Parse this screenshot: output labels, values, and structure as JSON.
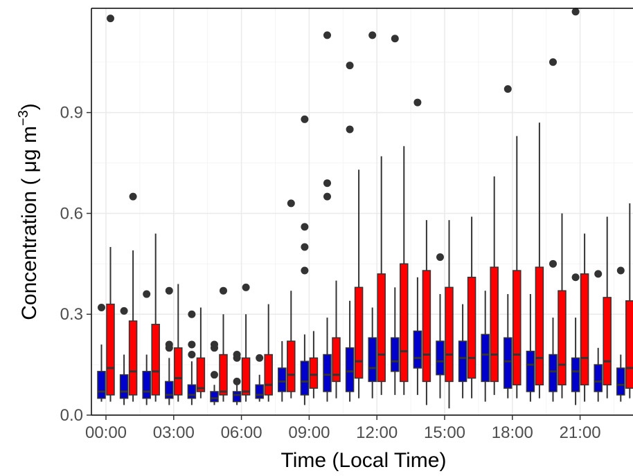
{
  "chart_data": {
    "type": "boxplot",
    "xlabel": "Time (Local Time)",
    "ylabel_main": "Concentration ( μg m",
    "ylabel_sup": "−3",
    "ylabel_close": ")",
    "ylim": [
      0,
      1.21
    ],
    "y_ticks": [
      {
        "value": 0.0,
        "label": "0.0"
      },
      {
        "value": 0.3,
        "label": "0.3"
      },
      {
        "value": 0.6,
        "label": "0.6"
      },
      {
        "value": 0.9,
        "label": "0.9"
      }
    ],
    "x_ticks": [
      {
        "hour": 0,
        "label": "00:00"
      },
      {
        "hour": 3,
        "label": "03:00"
      },
      {
        "hour": 6,
        "label": "06:00"
      },
      {
        "hour": 9,
        "label": "09:00"
      },
      {
        "hour": 12,
        "label": "12:00"
      },
      {
        "hour": 15,
        "label": "15:00"
      },
      {
        "hour": 18,
        "label": "18:00"
      },
      {
        "hour": 21,
        "label": "21:00"
      }
    ],
    "grid": true,
    "legend": "none",
    "colors": {
      "series_a": "#0000cc",
      "series_b": "#ff0000",
      "outline": "#333333",
      "outlier": "#333333"
    },
    "series": [
      {
        "color": "#0000cc",
        "boxes": [
          {
            "hour": 0,
            "whisker_low": 0.04,
            "q1": 0.05,
            "median": 0.07,
            "q3": 0.13,
            "whisker_high": 0.21,
            "outliers": [
              0.32
            ]
          },
          {
            "hour": 1,
            "whisker_low": 0.03,
            "q1": 0.05,
            "median": 0.07,
            "q3": 0.12,
            "whisker_high": 0.18,
            "outliers": [
              0.31
            ]
          },
          {
            "hour": 2,
            "whisker_low": 0.03,
            "q1": 0.05,
            "median": 0.07,
            "q3": 0.13,
            "whisker_high": 0.18,
            "outliers": [
              0.36
            ]
          },
          {
            "hour": 3,
            "whisker_low": 0.03,
            "q1": 0.05,
            "median": 0.06,
            "q3": 0.1,
            "whisker_high": 0.17,
            "outliers": [
              0.37,
              0.21,
              0.2
            ]
          },
          {
            "hour": 4,
            "whisker_low": 0.03,
            "q1": 0.05,
            "median": 0.06,
            "q3": 0.09,
            "whisker_high": 0.16,
            "outliers": [
              0.3,
              0.21,
              0.18
            ]
          },
          {
            "hour": 5,
            "whisker_low": 0.03,
            "q1": 0.04,
            "median": 0.05,
            "q3": 0.07,
            "whisker_high": 0.09,
            "outliers": [
              0.21,
              0.2,
              0.12
            ]
          },
          {
            "hour": 6,
            "whisker_low": 0.03,
            "q1": 0.04,
            "median": 0.06,
            "q3": 0.07,
            "whisker_high": 0.09,
            "outliers": [
              0.18,
              0.17,
              0.1
            ]
          },
          {
            "hour": 7,
            "whisker_low": 0.04,
            "q1": 0.05,
            "median": 0.06,
            "q3": 0.09,
            "whisker_high": 0.12,
            "outliers": [
              0.17
            ]
          },
          {
            "hour": 8,
            "whisker_low": 0.04,
            "q1": 0.07,
            "median": 0.1,
            "q3": 0.14,
            "whisker_high": 0.22,
            "outliers": []
          },
          {
            "hour": 9,
            "whisker_low": 0.03,
            "q1": 0.06,
            "median": 0.1,
            "q3": 0.16,
            "whisker_high": 0.24,
            "outliers": [
              0.88,
              0.56,
              0.5,
              0.43
            ]
          },
          {
            "hour": 10,
            "whisker_low": 0.04,
            "q1": 0.07,
            "median": 0.12,
            "q3": 0.18,
            "whisker_high": 0.29,
            "outliers": [
              1.13,
              0.69,
              0.65
            ]
          },
          {
            "hour": 11,
            "whisker_low": 0.04,
            "q1": 0.07,
            "median": 0.13,
            "q3": 0.2,
            "whisker_high": 0.34,
            "outliers": [
              1.04,
              0.85
            ]
          },
          {
            "hour": 12,
            "whisker_low": 0.05,
            "q1": 0.1,
            "median": 0.14,
            "q3": 0.23,
            "whisker_high": 0.32,
            "outliers": [
              1.13
            ]
          },
          {
            "hour": 13,
            "whisker_low": 0.06,
            "q1": 0.13,
            "median": 0.16,
            "q3": 0.23,
            "whisker_high": 0.38,
            "outliers": [
              1.12
            ]
          },
          {
            "hour": 14,
            "whisker_low": 0.06,
            "q1": 0.14,
            "median": 0.17,
            "q3": 0.25,
            "whisker_high": 0.41,
            "outliers": [
              0.93
            ]
          },
          {
            "hour": 15,
            "whisker_low": 0.05,
            "q1": 0.12,
            "median": 0.16,
            "q3": 0.22,
            "whisker_high": 0.36,
            "outliers": [
              0.47
            ]
          },
          {
            "hour": 16,
            "whisker_low": 0.05,
            "q1": 0.1,
            "median": 0.17,
            "q3": 0.22,
            "whisker_high": 0.33,
            "outliers": []
          },
          {
            "hour": 17,
            "whisker_low": 0.04,
            "q1": 0.1,
            "median": 0.18,
            "q3": 0.24,
            "whisker_high": 0.37,
            "outliers": []
          },
          {
            "hour": 18,
            "whisker_low": 0.05,
            "q1": 0.08,
            "median": 0.16,
            "q3": 0.23,
            "whisker_high": 0.36,
            "outliers": [
              0.97
            ]
          },
          {
            "hour": 19,
            "whisker_low": 0.04,
            "q1": 0.07,
            "median": 0.15,
            "q3": 0.19,
            "whisker_high": 0.36,
            "outliers": []
          },
          {
            "hour": 20,
            "whisker_low": 0.04,
            "q1": 0.07,
            "median": 0.13,
            "q3": 0.18,
            "whisker_high": 0.29,
            "outliers": [
              1.05,
              0.45
            ]
          },
          {
            "hour": 21,
            "whisker_low": 0.03,
            "q1": 0.07,
            "median": 0.13,
            "q3": 0.17,
            "whisker_high": 0.29,
            "outliers": [
              1.2,
              0.41
            ]
          },
          {
            "hour": 22,
            "whisker_low": 0.04,
            "q1": 0.07,
            "median": 0.1,
            "q3": 0.15,
            "whisker_high": 0.2,
            "outliers": [
              0.42
            ]
          },
          {
            "hour": 23,
            "whisker_low": 0.04,
            "q1": 0.06,
            "median": 0.09,
            "q3": 0.14,
            "whisker_high": 0.18,
            "outliers": [
              0.43
            ]
          }
        ]
      },
      {
        "color": "#ff0000",
        "boxes": [
          {
            "hour": 0,
            "whisker_low": 0.04,
            "q1": 0.06,
            "median": 0.14,
            "q3": 0.33,
            "whisker_high": 0.5,
            "outliers": [
              1.18
            ]
          },
          {
            "hour": 1,
            "whisker_low": 0.04,
            "q1": 0.06,
            "median": 0.13,
            "q3": 0.28,
            "whisker_high": 0.49,
            "outliers": [
              0.65
            ]
          },
          {
            "hour": 2,
            "whisker_low": 0.04,
            "q1": 0.06,
            "median": 0.13,
            "q3": 0.27,
            "whisker_high": 0.54,
            "outliers": []
          },
          {
            "hour": 3,
            "whisker_low": 0.04,
            "q1": 0.06,
            "median": 0.11,
            "q3": 0.2,
            "whisker_high": 0.39,
            "outliers": []
          },
          {
            "hour": 4,
            "whisker_low": 0.05,
            "q1": 0.07,
            "median": 0.08,
            "q3": 0.17,
            "whisker_high": 0.32,
            "outliers": []
          },
          {
            "hour": 5,
            "whisker_low": 0.04,
            "q1": 0.06,
            "median": 0.07,
            "q3": 0.18,
            "whisker_high": 0.3,
            "outliers": [
              0.37
            ]
          },
          {
            "hour": 6,
            "whisker_low": 0.04,
            "q1": 0.06,
            "median": 0.07,
            "q3": 0.17,
            "whisker_high": 0.3,
            "outliers": [
              0.38
            ]
          },
          {
            "hour": 7,
            "whisker_low": 0.04,
            "q1": 0.06,
            "median": 0.09,
            "q3": 0.18,
            "whisker_high": 0.33,
            "outliers": []
          },
          {
            "hour": 8,
            "whisker_low": 0.05,
            "q1": 0.07,
            "median": 0.12,
            "q3": 0.22,
            "whisker_high": 0.37,
            "outliers": [
              0.63
            ]
          },
          {
            "hour": 9,
            "whisker_low": 0.05,
            "q1": 0.08,
            "median": 0.12,
            "q3": 0.17,
            "whisker_high": 0.25,
            "outliers": []
          },
          {
            "hour": 10,
            "whisker_low": 0.05,
            "q1": 0.1,
            "median": 0.12,
            "q3": 0.23,
            "whisker_high": 0.4,
            "outliers": []
          },
          {
            "hour": 11,
            "whisker_low": 0.05,
            "q1": 0.11,
            "median": 0.16,
            "q3": 0.38,
            "whisker_high": 0.73,
            "outliers": []
          },
          {
            "hour": 12,
            "whisker_low": 0.06,
            "q1": 0.1,
            "median": 0.18,
            "q3": 0.42,
            "whisker_high": 0.77,
            "outliers": []
          },
          {
            "hour": 13,
            "whisker_low": 0.06,
            "q1": 0.1,
            "median": 0.19,
            "q3": 0.45,
            "whisker_high": 0.8,
            "outliers": []
          },
          {
            "hour": 14,
            "whisker_low": 0.03,
            "q1": 0.1,
            "median": 0.18,
            "q3": 0.43,
            "whisker_high": 0.58,
            "outliers": []
          },
          {
            "hour": 15,
            "whisker_low": 0.02,
            "q1": 0.1,
            "median": 0.18,
            "q3": 0.38,
            "whisker_high": 0.58,
            "outliers": []
          },
          {
            "hour": 16,
            "whisker_low": 0.05,
            "q1": 0.11,
            "median": 0.17,
            "q3": 0.41,
            "whisker_high": 0.59,
            "outliers": []
          },
          {
            "hour": 17,
            "whisker_low": 0.06,
            "q1": 0.1,
            "median": 0.18,
            "q3": 0.44,
            "whisker_high": 0.71,
            "outliers": []
          },
          {
            "hour": 18,
            "whisker_low": 0.05,
            "q1": 0.09,
            "median": 0.18,
            "q3": 0.43,
            "whisker_high": 0.83,
            "outliers": []
          },
          {
            "hour": 19,
            "whisker_low": 0.05,
            "q1": 0.09,
            "median": 0.17,
            "q3": 0.44,
            "whisker_high": 0.87,
            "outliers": []
          },
          {
            "hour": 20,
            "whisker_low": 0.05,
            "q1": 0.09,
            "median": 0.15,
            "q3": 0.37,
            "whisker_high": 0.6,
            "outliers": []
          },
          {
            "hour": 21,
            "whisker_low": 0.04,
            "q1": 0.09,
            "median": 0.17,
            "q3": 0.42,
            "whisker_high": 0.54,
            "outliers": []
          },
          {
            "hour": 22,
            "whisker_low": 0.05,
            "q1": 0.09,
            "median": 0.16,
            "q3": 0.35,
            "whisker_high": 0.59,
            "outliers": []
          },
          {
            "hour": 23,
            "whisker_low": 0.05,
            "q1": 0.08,
            "median": 0.14,
            "q3": 0.34,
            "whisker_high": 0.63,
            "outliers": []
          }
        ]
      }
    ]
  }
}
